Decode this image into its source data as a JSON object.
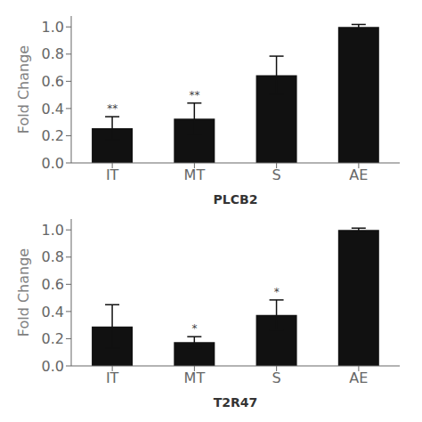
{
  "chart_data": [
    {
      "type": "bar",
      "title": "PLCB2",
      "ylabel": "Fold Change",
      "categories": [
        "IT",
        "MT",
        "S",
        "AE"
      ],
      "values": [
        0.255,
        0.325,
        0.645,
        1.0
      ],
      "errors": [
        0.085,
        0.115,
        0.14,
        0.018
      ],
      "annotations": [
        "**",
        "**",
        null,
        null
      ],
      "color": "#111111",
      "ylim": [
        0.0,
        1.08
      ],
      "yticks": [
        {
          "value": 0,
          "label": "0.0"
        },
        0.2,
        0.4,
        0.6,
        0.8,
        {
          "value": 1,
          "label": "1.0"
        }
      ],
      "grid": false
    },
    {
      "type": "bar",
      "title": "T2R47",
      "ylabel": "Fold Change",
      "categories": [
        "IT",
        "MT",
        "S",
        "AE"
      ],
      "values": [
        0.29,
        0.175,
        0.375,
        1.0
      ],
      "errors": [
        0.16,
        0.04,
        0.11,
        0.013
      ],
      "annotations": [
        null,
        "*",
        "*",
        null
      ],
      "color": "#111111",
      "ylim": [
        0.0,
        1.08
      ],
      "yticks": [
        {
          "value": 0,
          "label": "0.0"
        },
        0.2,
        0.4,
        0.6,
        0.8,
        {
          "value": 1,
          "label": "1.0"
        }
      ],
      "grid": false
    }
  ]
}
